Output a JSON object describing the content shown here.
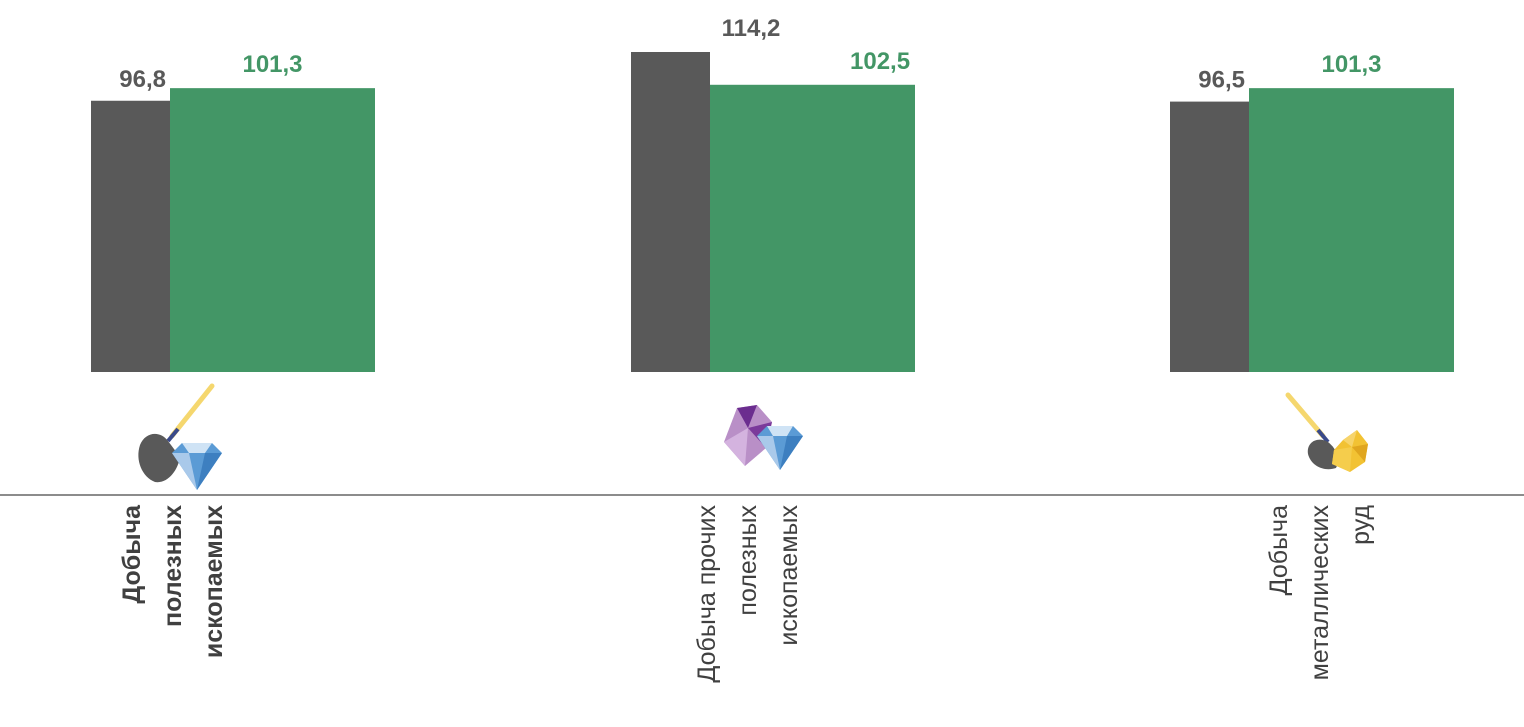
{
  "chart_data": {
    "type": "bar",
    "categories": [
      [
        "Добыча",
        "полезных",
        "ископаемых"
      ],
      [
        "Добыча прочих",
        "полезных",
        "ископаемых"
      ],
      [
        "Добыча",
        "металлических",
        "руд"
      ]
    ],
    "category_bold": [
      true,
      false,
      false
    ],
    "series": [
      {
        "values": [
          96.8,
          114.2,
          96.5
        ],
        "labels": [
          "96,8",
          "114,2",
          "96,5"
        ]
      },
      {
        "values": [
          101.3,
          102.5,
          101.3
        ],
        "labels": [
          "101,3",
          "102,5",
          "101,3"
        ]
      }
    ],
    "icons": [
      "shovel-gem-icon",
      "minerals-gem-icon",
      "shovel-gold-ore-icon"
    ],
    "ylim": [
      0,
      114.2
    ],
    "grid": false,
    "legend": "none",
    "colors": {
      "series": [
        "#595959",
        "#439666"
      ],
      "label": [
        "#595959",
        "#439666"
      ],
      "axis": "#8c8c8c",
      "category_text": "#404040"
    }
  }
}
